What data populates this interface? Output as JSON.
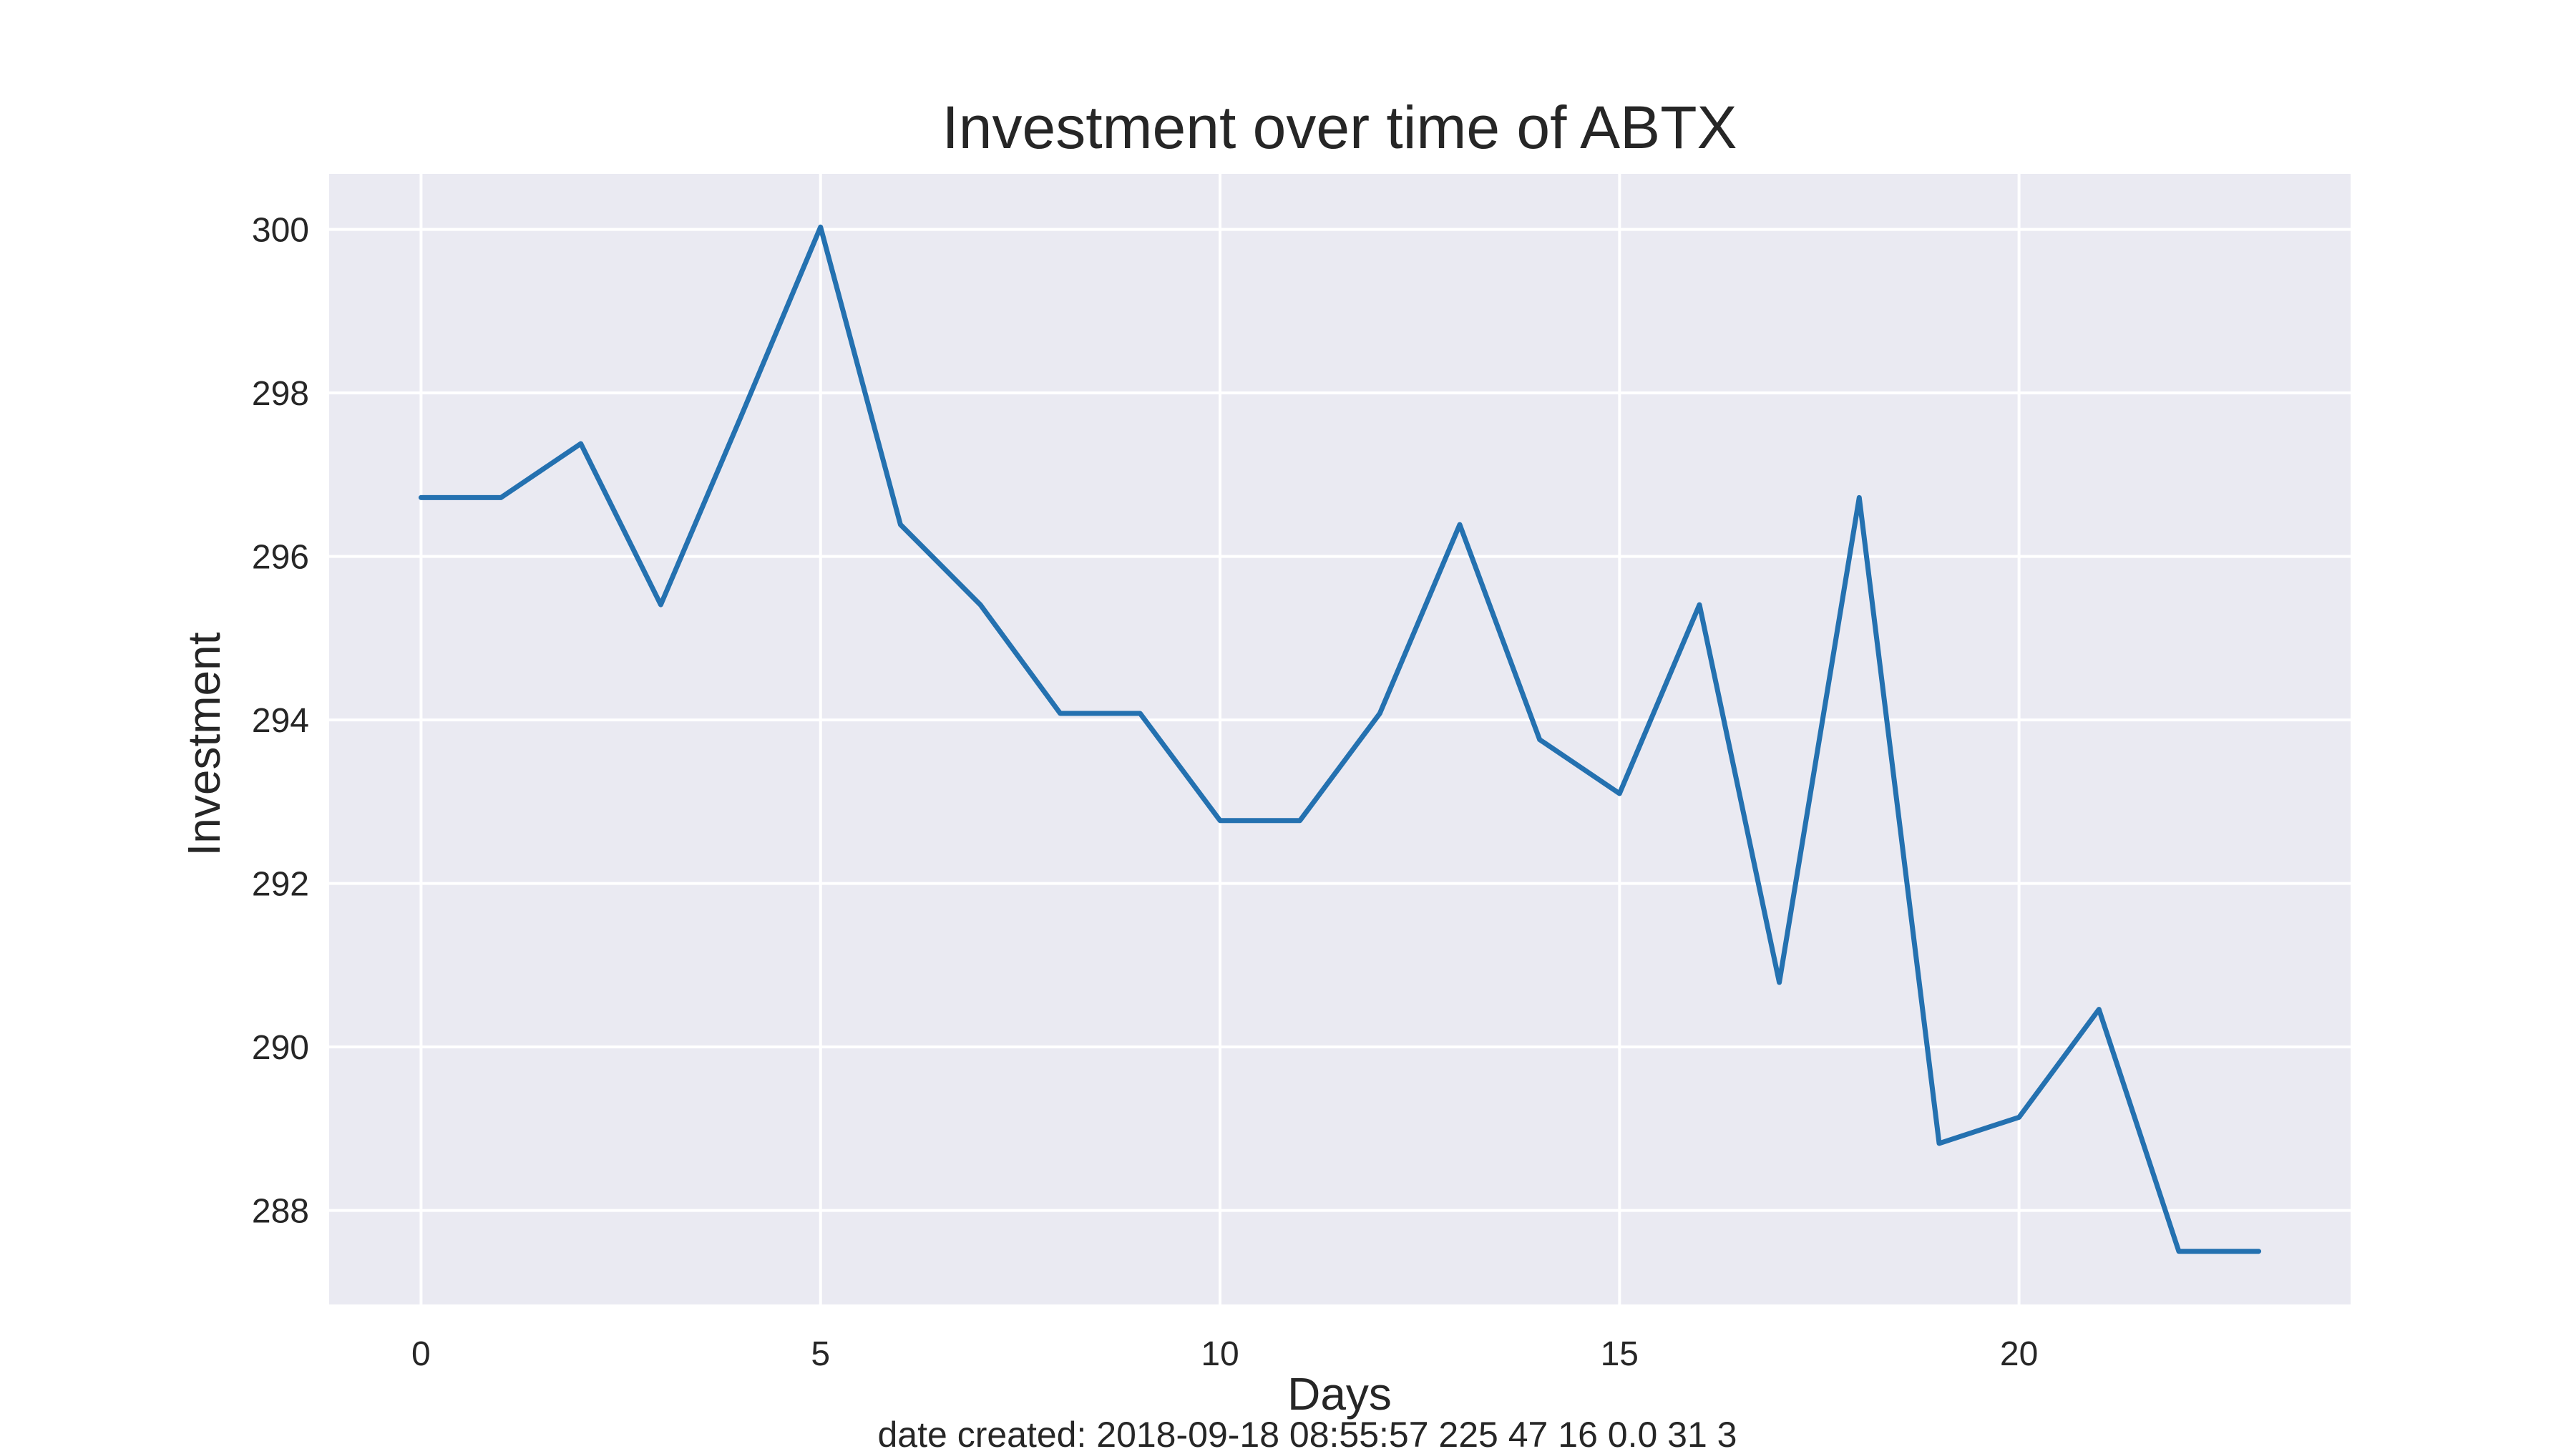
{
  "chart_data": {
    "type": "line",
    "title": "Investment over time of ABTX",
    "xlabel": "Days",
    "ylabel": "Investment",
    "footer": "date created: 2018-09-18 08:55:57 225 47 16 0.0 31 3",
    "xlim": [
      -1.15,
      24.15
    ],
    "ylim": [
      286.85,
      300.68
    ],
    "xticks": [
      0,
      5,
      10,
      15,
      20
    ],
    "yticks": [
      288,
      290,
      292,
      294,
      296,
      298,
      300
    ],
    "grid": true,
    "series": [
      {
        "x": [
          0,
          1,
          2,
          3,
          4,
          5,
          6,
          7,
          8,
          9,
          10,
          11,
          12,
          13,
          14,
          15,
          16,
          17,
          18,
          19,
          20,
          21,
          22,
          23
        ],
        "values": [
          296.72,
          296.72,
          297.38,
          295.41,
          297.7,
          300.03,
          296.39,
          295.41,
          294.08,
          294.08,
          292.77,
          292.77,
          294.08,
          296.39,
          293.76,
          293.1,
          295.41,
          290.79,
          296.72,
          288.82,
          289.14,
          290.46,
          287.5,
          287.5
        ],
        "color": "#2471b0"
      }
    ],
    "colors": {
      "plot_background": "#eaeaf2",
      "grid": "#ffffff",
      "text": "#262626"
    }
  }
}
